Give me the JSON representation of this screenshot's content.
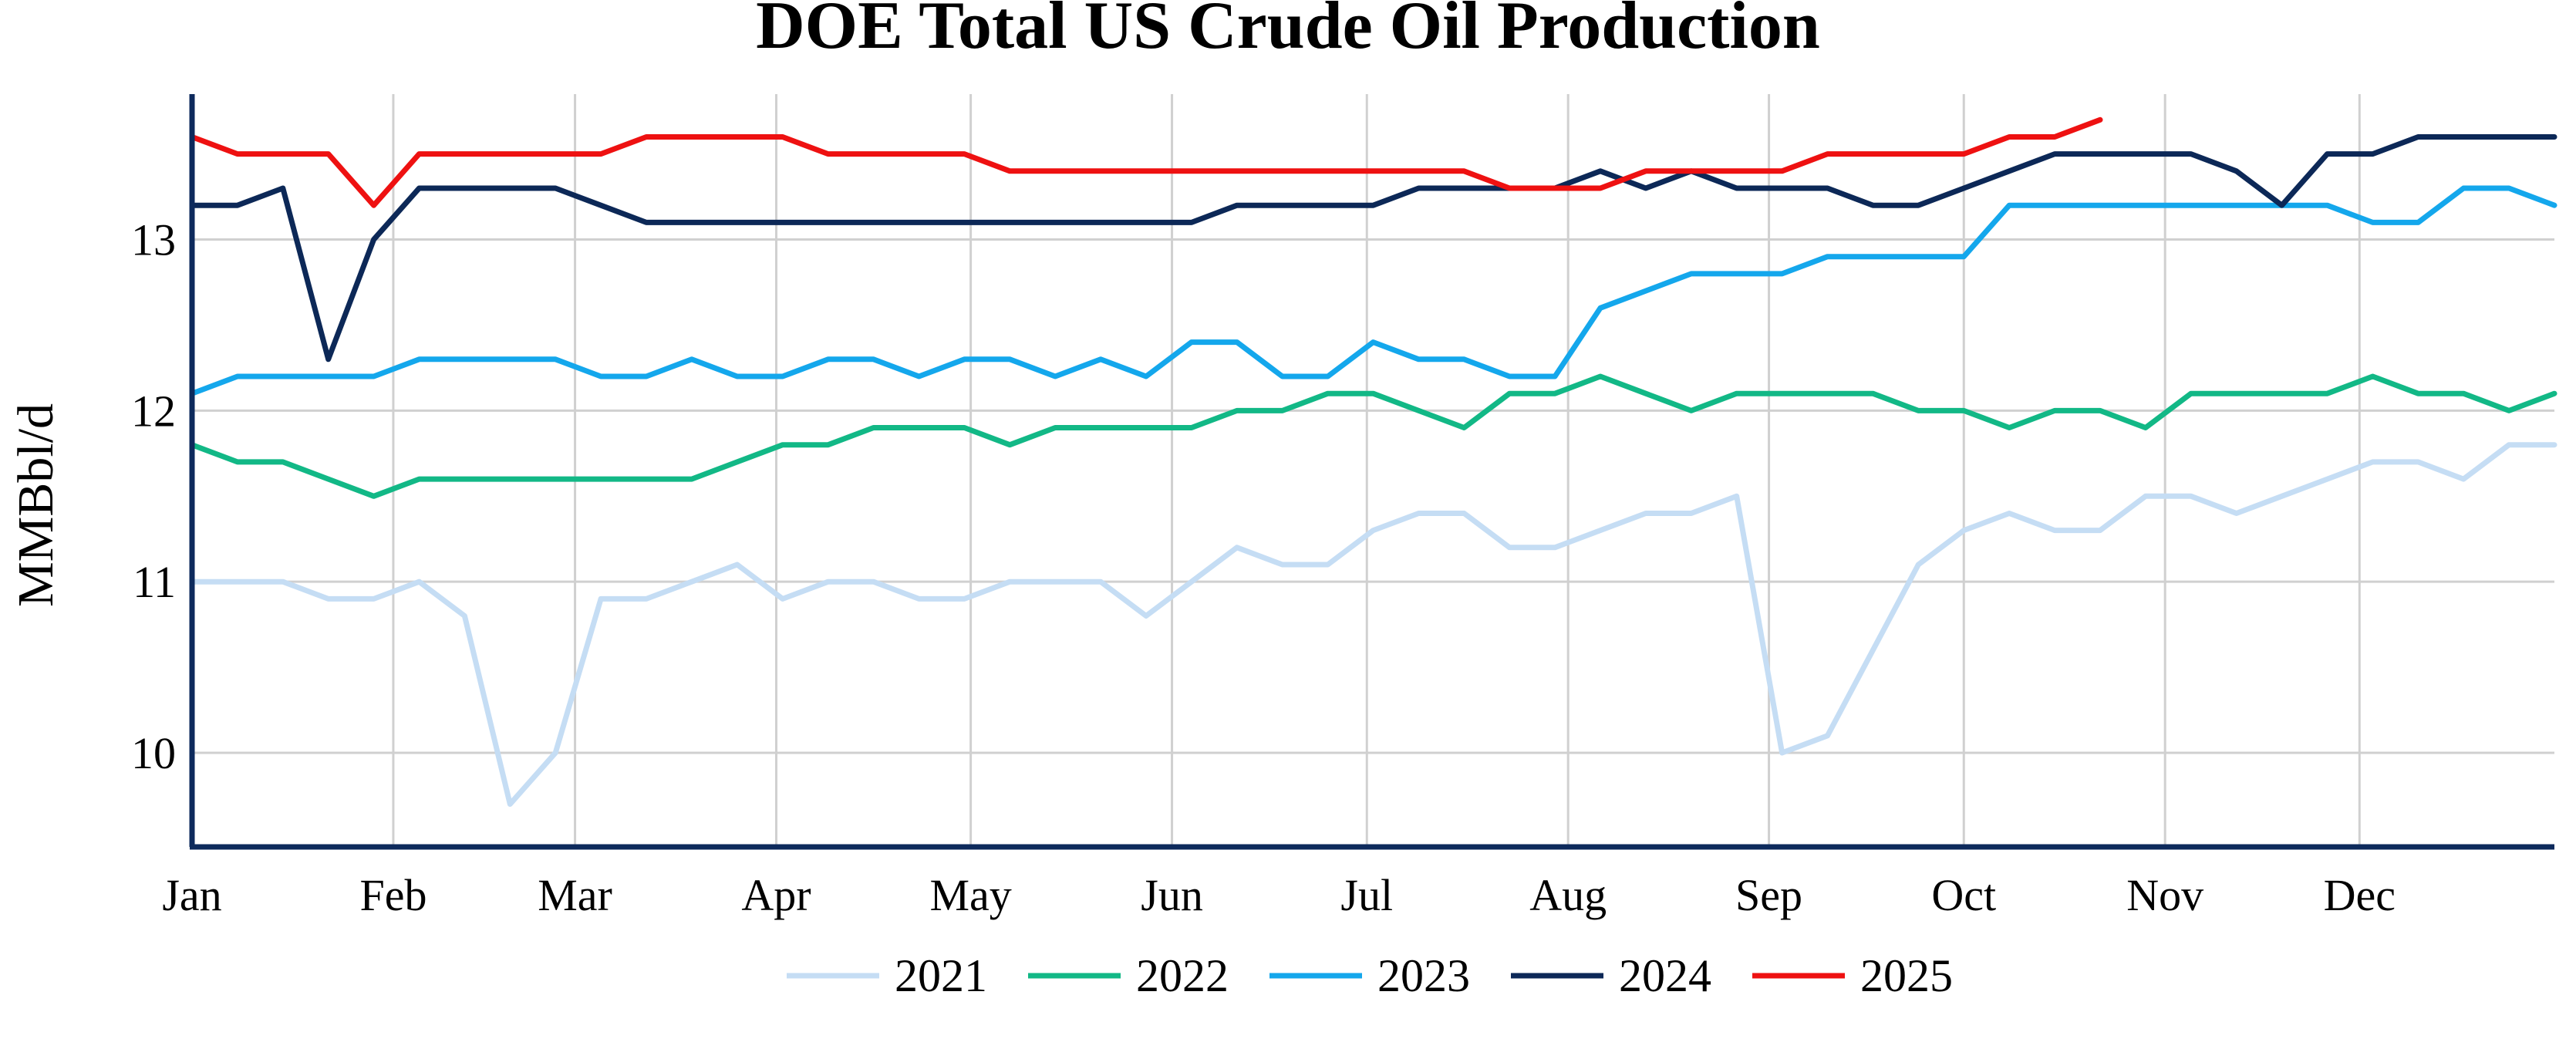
{
  "chart_data": {
    "type": "line",
    "title": "DOE Total US Crude Oil Production",
    "xlabel": "",
    "ylabel": "MMBbl/d",
    "x_unit": "week of year (1-52)",
    "xlim": [
      1,
      53
    ],
    "ylim": [
      9.45,
      13.85
    ],
    "yticks": [
      10,
      11,
      12,
      13
    ],
    "month_ticks": [
      {
        "label": "Jan",
        "x": 1
      },
      {
        "label": "Feb",
        "x": 5.43
      },
      {
        "label": "Mar",
        "x": 9.43
      },
      {
        "label": "Apr",
        "x": 13.86
      },
      {
        "label": "May",
        "x": 18.14
      },
      {
        "label": "Jun",
        "x": 22.57
      },
      {
        "label": "Jul",
        "x": 26.86
      },
      {
        "label": "Aug",
        "x": 31.29
      },
      {
        "label": "Sep",
        "x": 35.71
      },
      {
        "label": "Oct",
        "x": 40
      },
      {
        "label": "Nov",
        "x": 44.43
      },
      {
        "label": "Dec",
        "x": 48.71
      }
    ],
    "grid": true,
    "legend_position": "bottom",
    "series": [
      {
        "name": "2021",
        "color": "#c5ddf4",
        "x": [
          1,
          2,
          3,
          4,
          5,
          6,
          7,
          8,
          9,
          10,
          11,
          12,
          13,
          14,
          15,
          16,
          17,
          18,
          19,
          20,
          21,
          22,
          23,
          24,
          25,
          26,
          27,
          28,
          29,
          30,
          31,
          32,
          33,
          34,
          35,
          36,
          37,
          38,
          39,
          40,
          41,
          42,
          43,
          44,
          45,
          46,
          47,
          48,
          49,
          50,
          51,
          52,
          53
        ],
        "values": [
          11.0,
          11.0,
          11.0,
          10.9,
          10.9,
          11.0,
          10.8,
          9.7,
          10.0,
          10.9,
          10.9,
          11.0,
          11.1,
          10.9,
          11.0,
          11.0,
          10.9,
          10.9,
          11.0,
          11.0,
          11.0,
          10.8,
          11.0,
          11.2,
          11.1,
          11.1,
          11.3,
          11.4,
          11.4,
          11.2,
          11.2,
          11.3,
          11.4,
          11.4,
          11.5,
          10.0,
          10.1,
          10.6,
          11.1,
          11.3,
          11.4,
          11.3,
          11.3,
          11.5,
          11.5,
          11.4,
          11.5,
          11.6,
          11.7,
          11.7,
          11.6,
          11.8,
          11.8
        ]
      },
      {
        "name": "2022",
        "color": "#12b886",
        "x": [
          1,
          2,
          3,
          4,
          5,
          6,
          7,
          8,
          9,
          10,
          11,
          12,
          13,
          14,
          15,
          16,
          17,
          18,
          19,
          20,
          21,
          22,
          23,
          24,
          25,
          26,
          27,
          28,
          29,
          30,
          31,
          32,
          33,
          34,
          35,
          36,
          37,
          38,
          39,
          40,
          41,
          42,
          43,
          44,
          45,
          46,
          47,
          48,
          49,
          50,
          51,
          52,
          53
        ],
        "values": [
          11.8,
          11.7,
          11.7,
          11.6,
          11.5,
          11.6,
          11.6,
          11.6,
          11.6,
          11.6,
          11.6,
          11.6,
          11.7,
          11.8,
          11.8,
          11.9,
          11.9,
          11.9,
          11.8,
          11.9,
          11.9,
          11.9,
          11.9,
          12.0,
          12.0,
          12.1,
          12.1,
          12.0,
          11.9,
          12.1,
          12.1,
          12.2,
          12.1,
          12.0,
          12.1,
          12.1,
          12.1,
          12.1,
          12.0,
          12.0,
          11.9,
          12.0,
          12.0,
          11.9,
          12.1,
          12.1,
          12.1,
          12.1,
          12.2,
          12.1,
          12.1,
          12.0,
          12.1
        ]
      },
      {
        "name": "2023",
        "color": "#14a7ec",
        "x": [
          1,
          2,
          3,
          4,
          5,
          6,
          7,
          8,
          9,
          10,
          11,
          12,
          13,
          14,
          15,
          16,
          17,
          18,
          19,
          20,
          21,
          22,
          23,
          24,
          25,
          26,
          27,
          28,
          29,
          30,
          31,
          32,
          33,
          34,
          35,
          36,
          37,
          38,
          39,
          40,
          41,
          42,
          43,
          44,
          45,
          46,
          47,
          48,
          49,
          50,
          51,
          52,
          53
        ],
        "values": [
          12.1,
          12.2,
          12.2,
          12.2,
          12.2,
          12.3,
          12.3,
          12.3,
          12.3,
          12.2,
          12.2,
          12.3,
          12.2,
          12.2,
          12.3,
          12.3,
          12.2,
          12.3,
          12.3,
          12.2,
          12.3,
          12.2,
          12.4,
          12.4,
          12.2,
          12.2,
          12.4,
          12.3,
          12.3,
          12.2,
          12.2,
          12.6,
          12.7,
          12.8,
          12.8,
          12.8,
          12.9,
          12.9,
          12.9,
          12.9,
          13.2,
          13.2,
          13.2,
          13.2,
          13.2,
          13.2,
          13.2,
          13.2,
          13.1,
          13.1,
          13.3,
          13.3,
          13.2
        ]
      },
      {
        "name": "2024",
        "color": "#0c2857",
        "x": [
          1,
          2,
          3,
          4,
          5,
          6,
          7,
          8,
          9,
          10,
          11,
          12,
          13,
          14,
          15,
          16,
          17,
          18,
          19,
          20,
          21,
          22,
          23,
          24,
          25,
          26,
          27,
          28,
          29,
          30,
          31,
          32,
          33,
          34,
          35,
          36,
          37,
          38,
          39,
          40,
          41,
          42,
          43,
          44,
          45,
          46,
          47,
          48,
          49,
          50,
          51,
          52,
          53
        ],
        "values": [
          13.2,
          13.2,
          13.3,
          12.3,
          13.0,
          13.3,
          13.3,
          13.3,
          13.3,
          13.2,
          13.1,
          13.1,
          13.1,
          13.1,
          13.1,
          13.1,
          13.1,
          13.1,
          13.1,
          13.1,
          13.1,
          13.1,
          13.1,
          13.2,
          13.2,
          13.2,
          13.2,
          13.3,
          13.3,
          13.3,
          13.3,
          13.4,
          13.3,
          13.4,
          13.3,
          13.3,
          13.3,
          13.2,
          13.2,
          13.3,
          13.4,
          13.5,
          13.5,
          13.5,
          13.5,
          13.4,
          13.2,
          13.5,
          13.5,
          13.6,
          13.6,
          13.6,
          13.6
        ]
      },
      {
        "name": "2025",
        "color": "#ee1111",
        "x": [
          1,
          2,
          3,
          4,
          5,
          6,
          7,
          8,
          9,
          10,
          11,
          12,
          13,
          14,
          15,
          16,
          17,
          18,
          19,
          20,
          21,
          22,
          23,
          24,
          25,
          26,
          27,
          28,
          29,
          30,
          31,
          32,
          33,
          34,
          35,
          36,
          37,
          38,
          39,
          40,
          41,
          42,
          43
        ],
        "values": [
          13.6,
          13.5,
          13.5,
          13.5,
          13.2,
          13.5,
          13.5,
          13.5,
          13.5,
          13.5,
          13.6,
          13.6,
          13.6,
          13.6,
          13.5,
          13.5,
          13.5,
          13.5,
          13.4,
          13.4,
          13.4,
          13.4,
          13.4,
          13.4,
          13.4,
          13.4,
          13.4,
          13.4,
          13.4,
          13.3,
          13.3,
          13.3,
          13.4,
          13.4,
          13.4,
          13.4,
          13.5,
          13.5,
          13.5,
          13.5,
          13.6,
          13.6,
          13.7
        ]
      }
    ]
  }
}
